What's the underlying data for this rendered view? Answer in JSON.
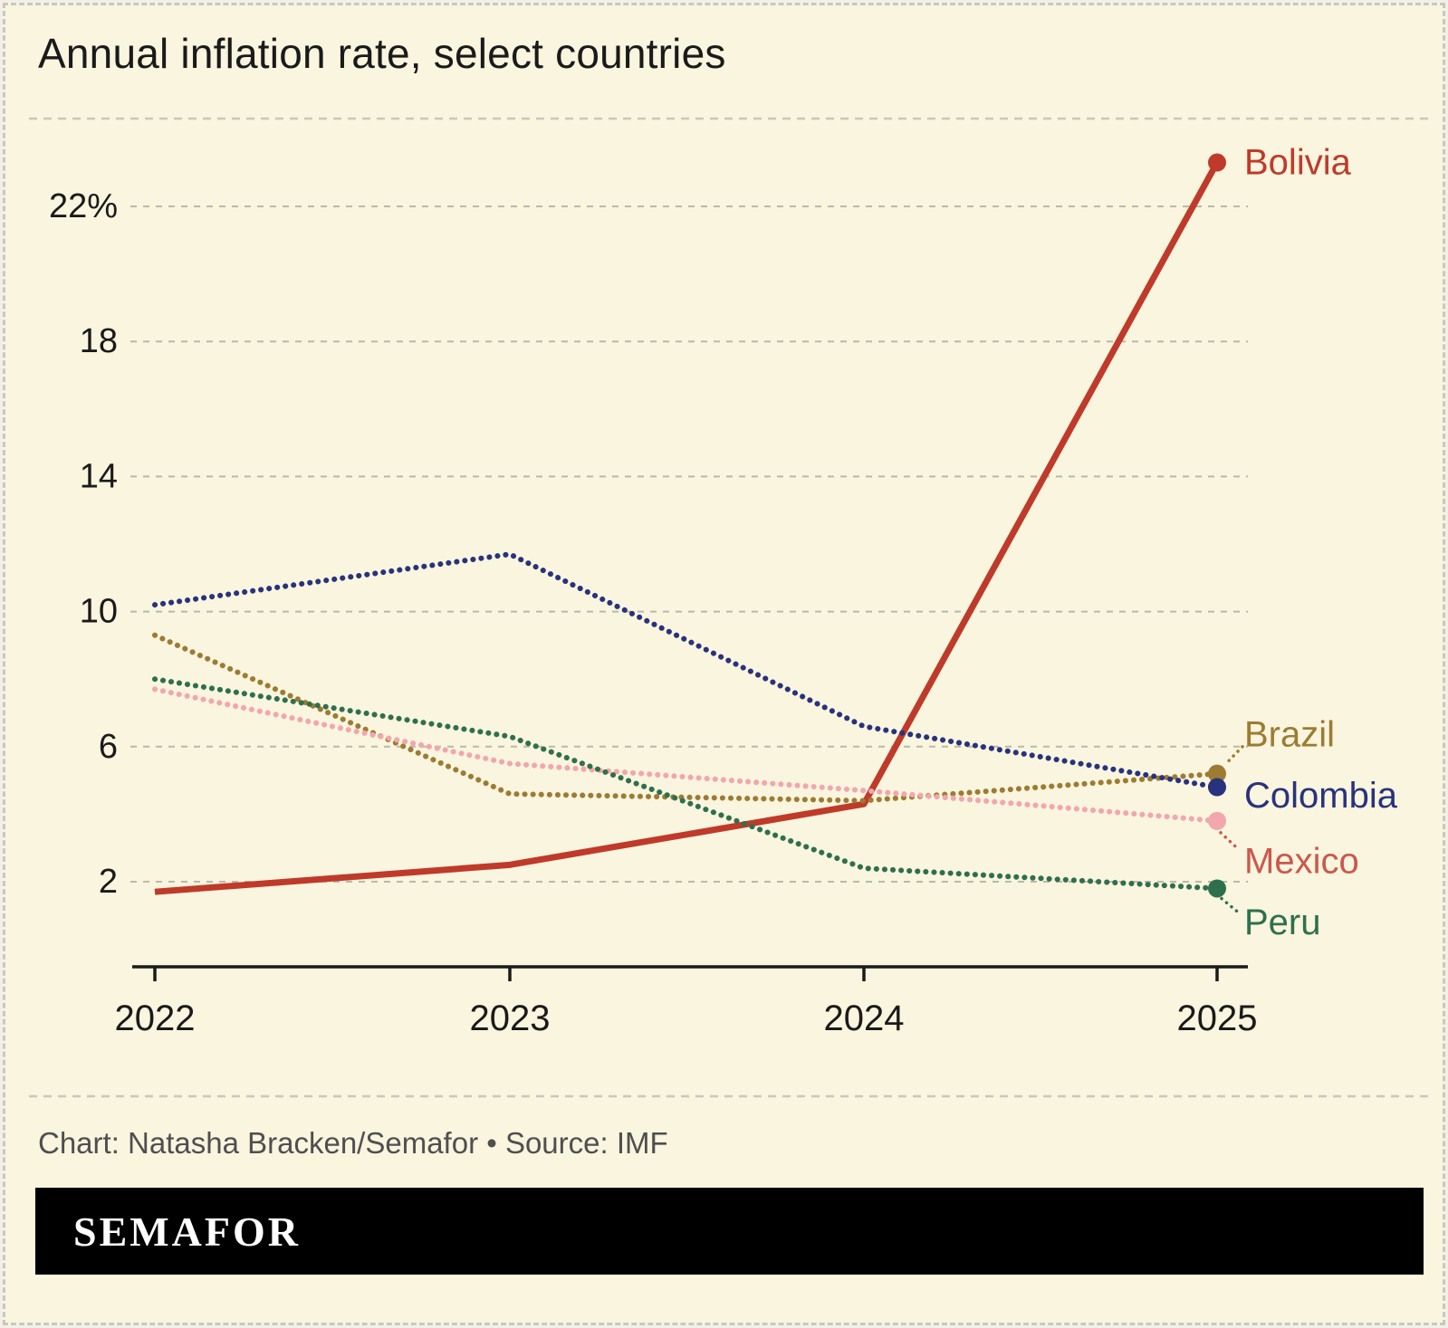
{
  "title": "Annual inflation rate, select countries",
  "caption": "Chart: Natasha Bracken/Semafor • Source: IMF",
  "logo": "SEMAFOR",
  "chart_data": {
    "type": "line",
    "x": [
      2022,
      2023,
      2024,
      2025
    ],
    "x_tick_labels": [
      "2022",
      "2023",
      "2024",
      "2025"
    ],
    "y_tick_labels": [
      "22%",
      "18",
      "14",
      "10",
      "6",
      "2"
    ],
    "y_tick_values": [
      22,
      18,
      14,
      10,
      6,
      2
    ],
    "ylim": [
      0,
      24.5
    ],
    "grid": "dashed-horizontal",
    "legend_position": "right-end-labels",
    "series": [
      {
        "name": "Bolivia",
        "values": [
          1.7,
          2.5,
          4.3,
          23.3
        ],
        "color": "#bf3a2a",
        "label_color": "#bf3a2a",
        "style": "solid"
      },
      {
        "name": "Brazil",
        "values": [
          9.3,
          4.6,
          4.4,
          5.2
        ],
        "color": "#9d7b33",
        "label_color": "#9d7b33",
        "style": "dotted"
      },
      {
        "name": "Colombia",
        "values": [
          10.2,
          11.7,
          6.6,
          4.8
        ],
        "color": "#28327d",
        "label_color": "#28327d",
        "style": "dotted"
      },
      {
        "name": "Mexico",
        "values": [
          7.7,
          5.5,
          4.7,
          3.8
        ],
        "color": "#f2a6ad",
        "label_color": "#ca584e",
        "style": "dotted"
      },
      {
        "name": "Peru",
        "values": [
          8.0,
          6.3,
          2.4,
          1.8
        ],
        "color": "#2f6f4e",
        "label_color": "#2f6f4e",
        "style": "dotted"
      }
    ],
    "colors": {
      "background": "#f9f5de",
      "border": "#c8c8bc",
      "grid": "#b9b9ab",
      "axis": "#1a1a1a",
      "text": "#1a1a1a",
      "caption": "#4f4f4f",
      "logo_bg": "#000000",
      "logo_text": "#ffffff"
    }
  }
}
